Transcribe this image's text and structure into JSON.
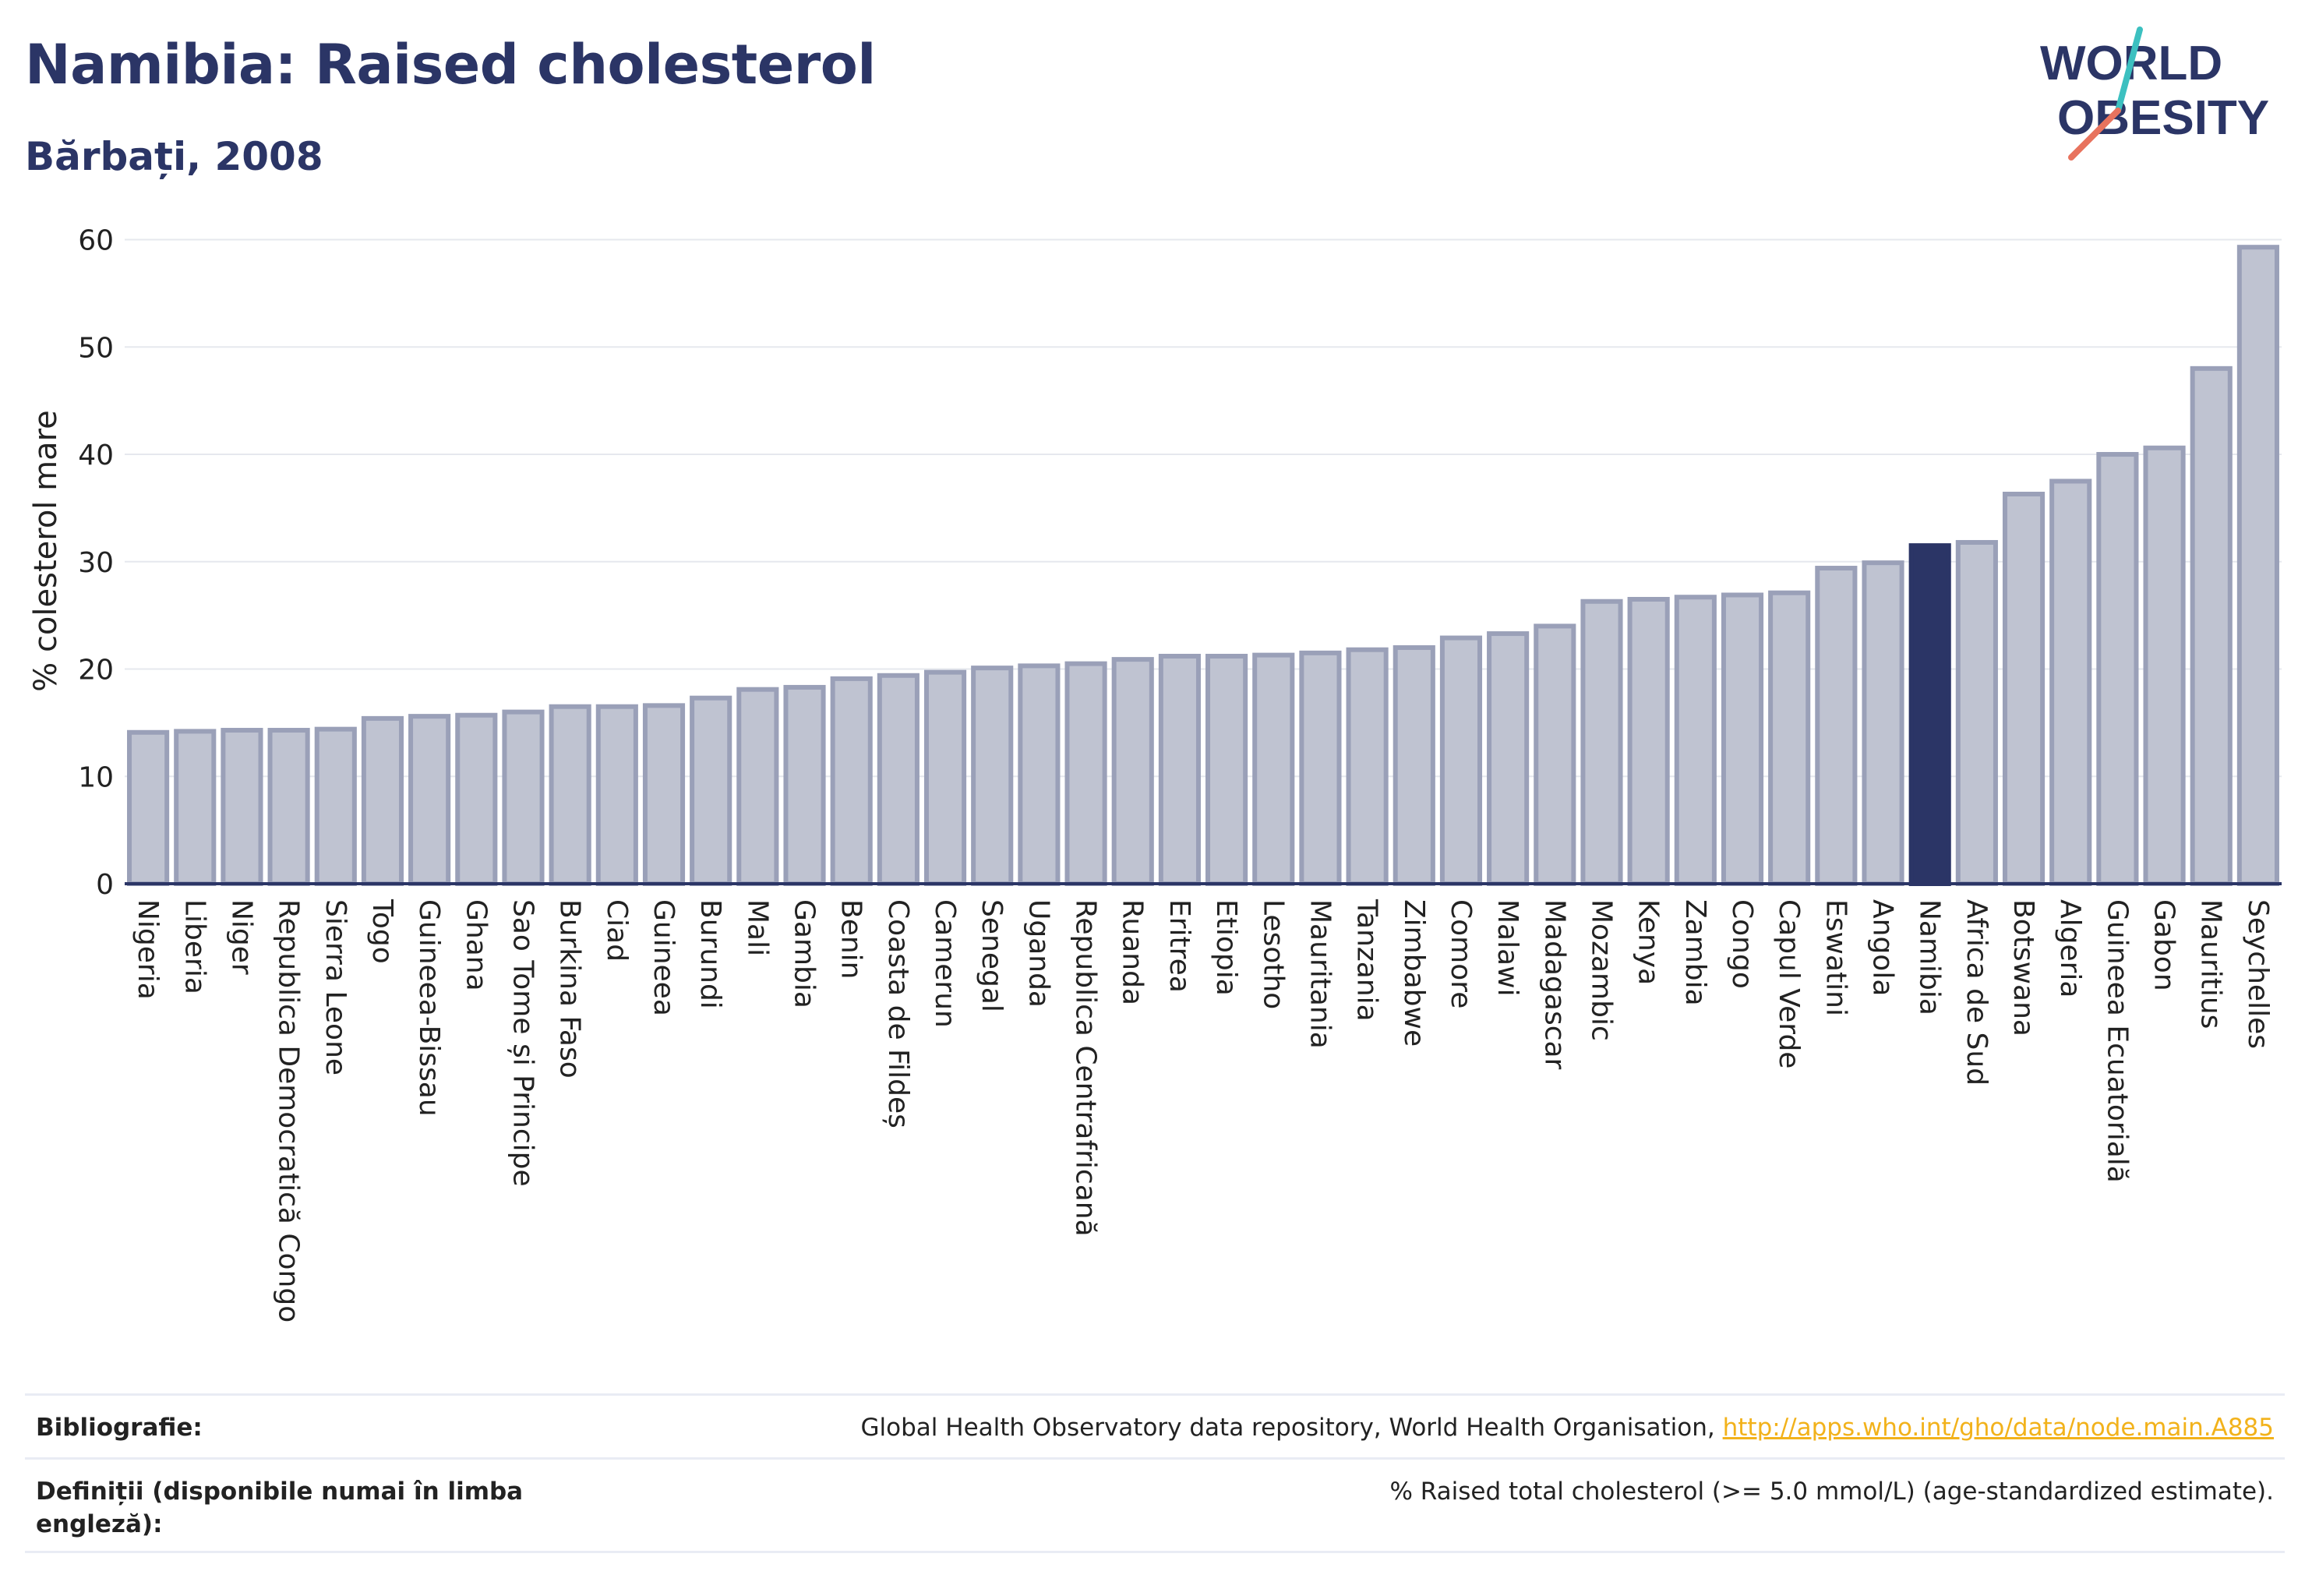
{
  "header": {
    "title": "Namibia: Raised cholesterol",
    "subtitle": "Bărbați, 2008"
  },
  "logo": {
    "line1": "WORLD",
    "line2": "OBESITY",
    "text_color": "#2b3566",
    "slash_top_color": "#3cc0c0",
    "slash_bottom_color": "#e8735e"
  },
  "colors": {
    "bar_fill": "#bfc3d1",
    "bar_stroke": "#9aa0b8",
    "highlight_fill": "#2b3566",
    "axis": "#2b3566",
    "grid": "#e6e8ee"
  },
  "chart_data": {
    "type": "bar",
    "ylabel": "% colesterol mare",
    "xlabel": "",
    "ylim": [
      0,
      62
    ],
    "yticks": [
      0,
      10,
      20,
      30,
      40,
      50,
      60
    ],
    "grid": true,
    "highlight": "Namibia",
    "categories": [
      "Nigeria",
      "Liberia",
      "Niger",
      "Republica Democratică Congo",
      "Sierra Leone",
      "Togo",
      "Guineea-Bissau",
      "Ghana",
      "Sao Tome și Principe",
      "Burkina Faso",
      "Ciad",
      "Guineea",
      "Burundi",
      "Mali",
      "Gambia",
      "Benin",
      "Coasta de Fildeș",
      "Camerun",
      "Senegal",
      "Uganda",
      "Republica Centrafricană",
      "Ruanda",
      "Eritrea",
      "Etiopia",
      "Lesotho",
      "Mauritania",
      "Tanzania",
      "Zimbabwe",
      "Comore",
      "Malawi",
      "Madagascar",
      "Mozambic",
      "Kenya",
      "Zambia",
      "Congo",
      "Capul Verde",
      "Eswatini",
      "Angola",
      "Namibia",
      "Africa de Sud",
      "Botswana",
      "Algeria",
      "Guineea Ecuatorială",
      "Gabon",
      "Mauritius",
      "Seychelles"
    ],
    "values": [
      14.1,
      14.2,
      14.3,
      14.3,
      14.4,
      15.4,
      15.6,
      15.7,
      16.0,
      16.5,
      16.5,
      16.6,
      17.3,
      18.1,
      18.3,
      19.1,
      19.4,
      19.7,
      20.1,
      20.3,
      20.5,
      20.9,
      21.2,
      21.2,
      21.3,
      21.5,
      21.8,
      22.0,
      22.9,
      23.3,
      24.0,
      26.3,
      26.5,
      26.7,
      26.9,
      27.1,
      29.4,
      29.9,
      31.5,
      31.8,
      36.3,
      37.5,
      40.0,
      40.6,
      48.0,
      59.3
    ]
  },
  "footer": {
    "bibliography_label": "Bibliografie:",
    "bibliography_text": "Global Health Observatory data repository, World Health Organisation, ",
    "bibliography_link": "http://apps.who.int/gho/data/node.main.A885",
    "definitions_label": "Definiții (disponibile numai în limba engleză):",
    "definitions_text": "% Raised total cholesterol (>= 5.0 mmol/L) (age-standardized estimate)."
  }
}
